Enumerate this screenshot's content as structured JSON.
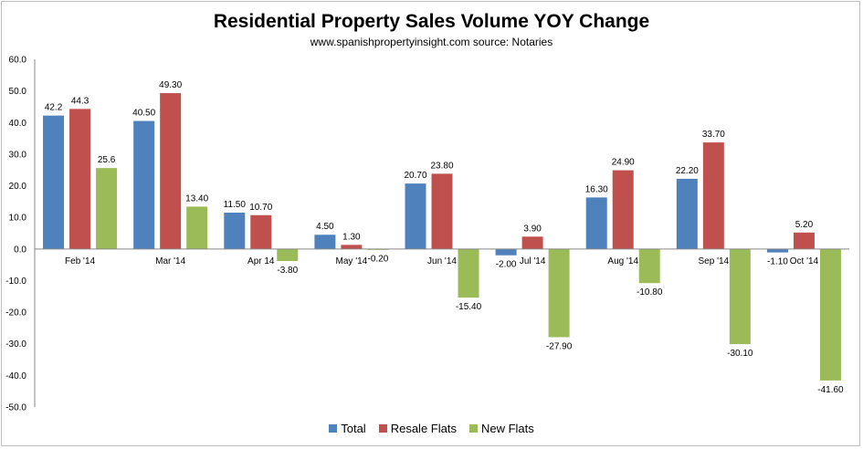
{
  "chart_data": {
    "type": "bar",
    "title": "Residential Property Sales Volume YOY Change",
    "subtitle": "www.spanishpropertyinsight.com source: Notaries",
    "categories": [
      "Feb '14",
      "Mar '14",
      "Apr 14",
      "May '14",
      "Jun '14",
      "Jul '14",
      "Aug '14",
      "Sep '14",
      "Oct '14"
    ],
    "series": [
      {
        "name": "Total",
        "color": "#4f81bd",
        "values": [
          42.2,
          40.5,
          11.5,
          4.5,
          20.7,
          -2.0,
          16.3,
          22.2,
          -1.1
        ],
        "labels": [
          "42.2",
          "40.50",
          "11.50",
          "4.50",
          "20.70",
          "-2.00",
          "16.30",
          "22.20",
          "-1.10"
        ]
      },
      {
        "name": "Resale Flats",
        "color": "#c0504d",
        "values": [
          44.3,
          49.3,
          10.7,
          1.3,
          23.8,
          3.9,
          24.9,
          33.7,
          5.2
        ],
        "labels": [
          "44.3",
          "49.30",
          "10.70",
          "1.30",
          "23.80",
          "3.90",
          "24.90",
          "33.70",
          "5.20"
        ]
      },
      {
        "name": "New Flats",
        "color": "#9bbb59",
        "values": [
          25.6,
          13.4,
          -3.8,
          -0.2,
          -15.4,
          -27.9,
          -10.8,
          -30.1,
          -41.6
        ],
        "labels": [
          "25.6",
          "13.40",
          "-3.80",
          "-0.20",
          "-15.40",
          "-27.90",
          "-10.80",
          "-30.10",
          "-41.60"
        ]
      }
    ],
    "ylim": [
      -50,
      60
    ],
    "yticks": [
      "60.0",
      "50.0",
      "40.0",
      "30.0",
      "20.0",
      "10.0",
      "0.0",
      "-10.0",
      "-20.0",
      "-30.0",
      "-40.0",
      "-50.0"
    ],
    "grid": false,
    "legend": "bottom"
  }
}
